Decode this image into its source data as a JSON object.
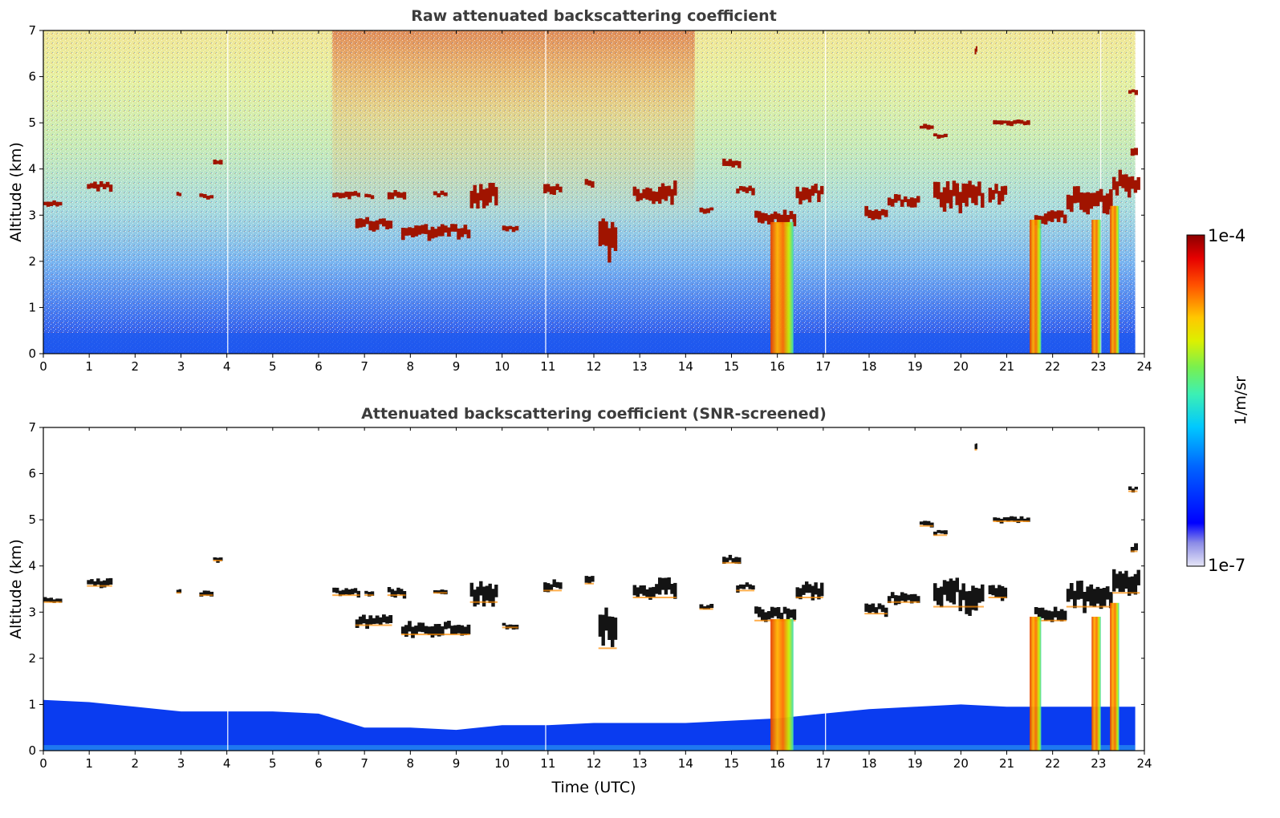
{
  "chart_data": [
    {
      "type": "heatmap",
      "title": "Raw attenuated backscattering coefficient",
      "xlabel": "",
      "ylabel": "Altitude (km)",
      "xlim": [
        0,
        24
      ],
      "ylim": [
        0,
        7
      ],
      "xticks": [
        "0",
        "1",
        "2",
        "3",
        "4",
        "5",
        "6",
        "7",
        "8",
        "9",
        "10",
        "11",
        "12",
        "13",
        "14",
        "15",
        "16",
        "17",
        "18",
        "19",
        "20",
        "21",
        "22",
        "23",
        "24"
      ],
      "yticks": [
        "0",
        "1",
        "2",
        "3",
        "4",
        "5",
        "6",
        "7"
      ],
      "screened": false,
      "features": [
        {
          "kind": "cloud_layer",
          "x": [
            0.0,
            0.4
          ],
          "alt": [
            3.2,
            3.3
          ]
        },
        {
          "kind": "cloud_layer",
          "x": [
            0.95,
            1.5
          ],
          "alt": [
            3.55,
            3.7
          ]
        },
        {
          "kind": "cloud_layer",
          "x": [
            2.9,
            3.0
          ],
          "alt": [
            3.4,
            3.5
          ]
        },
        {
          "kind": "cloud_layer",
          "x": [
            3.4,
            3.7
          ],
          "alt": [
            3.35,
            3.45
          ]
        },
        {
          "kind": "cloud_layer",
          "x": [
            3.7,
            3.9
          ],
          "alt": [
            4.1,
            4.2
          ]
        },
        {
          "kind": "cloud_layer",
          "x": [
            6.3,
            6.9
          ],
          "alt": [
            3.35,
            3.5
          ]
        },
        {
          "kind": "cloud_layer",
          "x": [
            7.0,
            7.2
          ],
          "alt": [
            3.35,
            3.45
          ]
        },
        {
          "kind": "cloud_layer",
          "x": [
            7.5,
            7.9
          ],
          "alt": [
            3.35,
            3.5
          ]
        },
        {
          "kind": "cloud_layer",
          "x": [
            8.5,
            8.8
          ],
          "alt": [
            3.4,
            3.5
          ]
        },
        {
          "kind": "cloud_layer",
          "x": [
            9.3,
            9.9
          ],
          "alt": [
            3.2,
            3.6
          ]
        },
        {
          "kind": "cloud_layer",
          "x": [
            6.8,
            7.6
          ],
          "alt": [
            2.7,
            2.9
          ]
        },
        {
          "kind": "cloud_layer",
          "x": [
            7.8,
            9.3
          ],
          "alt": [
            2.5,
            2.75
          ]
        },
        {
          "kind": "cloud_layer",
          "x": [
            10.0,
            10.35
          ],
          "alt": [
            2.65,
            2.75
          ]
        },
        {
          "kind": "cloud_layer",
          "x": [
            10.9,
            11.3
          ],
          "alt": [
            3.45,
            3.65
          ]
        },
        {
          "kind": "cloud_layer",
          "x": [
            11.8,
            12.0
          ],
          "alt": [
            3.6,
            3.75
          ]
        },
        {
          "kind": "cloud_layer",
          "x": [
            12.1,
            12.5
          ],
          "alt": [
            2.2,
            2.9
          ]
        },
        {
          "kind": "cloud_layer",
          "x": [
            12.85,
            13.4
          ],
          "alt": [
            3.3,
            3.55
          ]
        },
        {
          "kind": "cloud_layer",
          "x": [
            13.4,
            13.8
          ],
          "alt": [
            3.3,
            3.65
          ]
        },
        {
          "kind": "cloud_layer",
          "x": [
            14.3,
            14.6
          ],
          "alt": [
            3.05,
            3.15
          ]
        },
        {
          "kind": "cloud_layer",
          "x": [
            14.8,
            15.2
          ],
          "alt": [
            4.05,
            4.2
          ]
        },
        {
          "kind": "cloud_layer",
          "x": [
            15.1,
            15.5
          ],
          "alt": [
            3.45,
            3.6
          ]
        },
        {
          "kind": "cloud_layer",
          "x": [
            15.5,
            16.4
          ],
          "alt": [
            2.8,
            3.05
          ]
        },
        {
          "kind": "cloud_layer",
          "x": [
            16.4,
            17.0
          ],
          "alt": [
            3.3,
            3.6
          ]
        },
        {
          "kind": "cloud_layer",
          "x": [
            17.9,
            18.4
          ],
          "alt": [
            2.95,
            3.15
          ]
        },
        {
          "kind": "cloud_layer",
          "x": [
            18.4,
            19.1
          ],
          "alt": [
            3.2,
            3.4
          ]
        },
        {
          "kind": "cloud_layer",
          "x": [
            19.1,
            19.4
          ],
          "alt": [
            4.85,
            4.95
          ]
        },
        {
          "kind": "cloud_layer",
          "x": [
            19.4,
            19.7
          ],
          "alt": [
            4.65,
            4.75
          ]
        },
        {
          "kind": "cloud_layer",
          "x": [
            19.4,
            20.5
          ],
          "alt": [
            3.1,
            3.6
          ]
        },
        {
          "kind": "cloud_layer",
          "x": [
            20.6,
            21.0
          ],
          "alt": [
            3.3,
            3.6
          ]
        },
        {
          "kind": "cloud_layer",
          "x": [
            20.7,
            21.5
          ],
          "alt": [
            4.95,
            5.05
          ]
        },
        {
          "kind": "cloud_layer",
          "x": [
            20.3,
            20.35
          ],
          "alt": [
            6.5,
            6.65
          ]
        },
        {
          "kind": "cloud_layer",
          "x": [
            21.6,
            22.3
          ],
          "alt": [
            2.8,
            3.05
          ]
        },
        {
          "kind": "cloud_layer",
          "x": [
            22.3,
            23.3
          ],
          "alt": [
            3.1,
            3.55
          ]
        },
        {
          "kind": "cloud_layer",
          "x": [
            23.3,
            23.9
          ],
          "alt": [
            3.4,
            3.85
          ]
        },
        {
          "kind": "cloud_layer",
          "x": [
            23.65,
            23.85
          ],
          "alt": [
            5.6,
            5.7
          ]
        },
        {
          "kind": "cloud_layer",
          "x": [
            23.7,
            23.85
          ],
          "alt": [
            4.3,
            4.45
          ]
        },
        {
          "kind": "precipitation_shaft",
          "x": [
            15.85,
            16.35
          ],
          "alt": [
            0,
            2.85
          ]
        },
        {
          "kind": "precipitation_shaft",
          "x": [
            21.5,
            21.75
          ],
          "alt": [
            0,
            2.9
          ]
        },
        {
          "kind": "precipitation_shaft",
          "x": [
            22.85,
            23.05
          ],
          "alt": [
            0,
            2.9
          ]
        },
        {
          "kind": "precipitation_shaft",
          "x": [
            23.25,
            23.45
          ],
          "alt": [
            0,
            3.2
          ]
        }
      ]
    },
    {
      "type": "heatmap",
      "title": "Attenuated backscattering coefficient (SNR-screened)",
      "xlabel": "Time (UTC)",
      "ylabel": "Altitude (km)",
      "xlim": [
        0,
        24
      ],
      "ylim": [
        0,
        7
      ],
      "xticks": [
        "0",
        "1",
        "2",
        "3",
        "4",
        "5",
        "6",
        "7",
        "8",
        "9",
        "10",
        "11",
        "12",
        "13",
        "14",
        "15",
        "16",
        "17",
        "18",
        "19",
        "20",
        "21",
        "22",
        "23",
        "24"
      ],
      "yticks": [
        "0",
        "1",
        "2",
        "3",
        "4",
        "5",
        "6",
        "7"
      ],
      "screened": true,
      "boundary_layer_top_km": [
        [
          0,
          1.1
        ],
        [
          1,
          1.05
        ],
        [
          2,
          0.95
        ],
        [
          3,
          0.85
        ],
        [
          4,
          0.85
        ],
        [
          5,
          0.85
        ],
        [
          6,
          0.8
        ],
        [
          7,
          0.5
        ],
        [
          8,
          0.5
        ],
        [
          9,
          0.45
        ],
        [
          10,
          0.55
        ],
        [
          11,
          0.55
        ],
        [
          12,
          0.6
        ],
        [
          13,
          0.6
        ],
        [
          14,
          0.6
        ],
        [
          15,
          0.65
        ],
        [
          16,
          0.7
        ],
        [
          17,
          0.8
        ],
        [
          18,
          0.9
        ],
        [
          19,
          0.95
        ],
        [
          20,
          1.0
        ],
        [
          21,
          0.95
        ],
        [
          22,
          0.95
        ],
        [
          23,
          0.95
        ],
        [
          23.8,
          0.95
        ]
      ]
    }
  ],
  "colorbar": {
    "label": "1/m/sr",
    "min_label": "1e-7",
    "max_label": "1e-4"
  }
}
